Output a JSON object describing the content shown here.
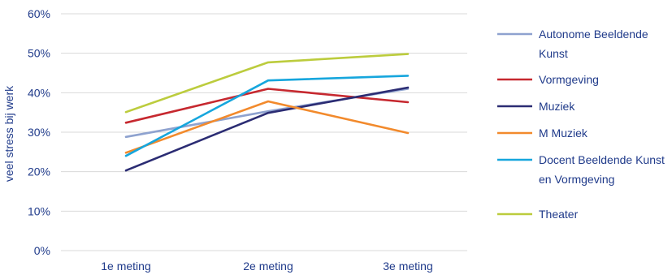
{
  "chart_data": {
    "type": "line",
    "categories": [
      "1e meting",
      "2e meting",
      "3e meting"
    ],
    "ylabel": "veel stress bij werk",
    "xlabel": "",
    "ylim": [
      0,
      60
    ],
    "yticks": [
      "0%",
      "10%",
      "20%",
      "30%",
      "40%",
      "50%",
      "60%"
    ],
    "grid": true,
    "legend_position": "right",
    "series": [
      {
        "name": "Autonome Beeldende Kunst",
        "legend_lines": [
          "Autonome Beeldende",
          "Kunst"
        ],
        "color": "#8ea2cf",
        "values": [
          28.8,
          35.3,
          41.0
        ]
      },
      {
        "name": "Vormgeving",
        "legend_lines": [
          "Vormgeving"
        ],
        "color": "#c6282f",
        "values": [
          32.4,
          41.0,
          37.6
        ]
      },
      {
        "name": "Muziek",
        "legend_lines": [
          "Muziek"
        ],
        "color": "#2b2c73",
        "values": [
          20.3,
          34.9,
          41.3
        ]
      },
      {
        "name": "M Muziek",
        "legend_lines": [
          "M Muziek"
        ],
        "color": "#f28a2c",
        "values": [
          24.8,
          37.8,
          29.8
        ]
      },
      {
        "name": "Docent Beeldende Kunst en Vormgeving",
        "legend_lines": [
          "Docent Beeldende Kunst",
          "en Vormgeving"
        ],
        "color": "#16a6dd",
        "values": [
          24.0,
          43.1,
          44.3
        ]
      },
      {
        "name": "Theater",
        "legend_lines": [
          "Theater"
        ],
        "color": "#bccc3d",
        "values": [
          35.1,
          47.7,
          49.8
        ]
      }
    ]
  }
}
